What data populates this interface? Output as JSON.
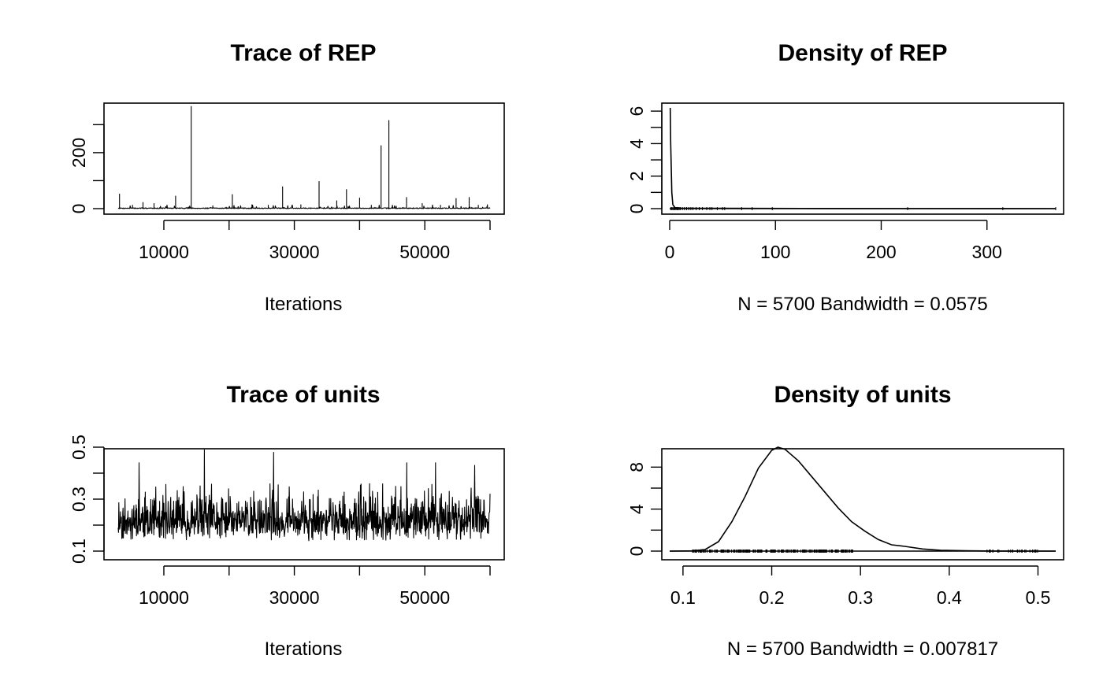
{
  "chart_data": [
    {
      "id": "trace-rep",
      "type": "line",
      "title": "Trace of REP",
      "xlabel": "Iterations",
      "ylabel": "",
      "xlim": [
        3000,
        60000
      ],
      "ylim": [
        0,
        360
      ],
      "xticks": [
        10000,
        20000,
        30000,
        40000,
        50000,
        60000
      ],
      "xtick_labels": [
        "10000",
        "",
        "30000",
        "",
        "50000",
        ""
      ],
      "yticks": [
        0,
        100,
        200,
        300
      ],
      "ytick_labels": [
        "0",
        "",
        "200",
        ""
      ],
      "baseline": 2,
      "spikes": [
        {
          "x": 3200,
          "y": 52
        },
        {
          "x": 5200,
          "y": 12
        },
        {
          "x": 6800,
          "y": 22
        },
        {
          "x": 8500,
          "y": 18
        },
        {
          "x": 11800,
          "y": 45
        },
        {
          "x": 14200,
          "y": 365
        },
        {
          "x": 17500,
          "y": 10
        },
        {
          "x": 20500,
          "y": 50
        },
        {
          "x": 23500,
          "y": 14
        },
        {
          "x": 26000,
          "y": 12
        },
        {
          "x": 28200,
          "y": 78
        },
        {
          "x": 31000,
          "y": 14
        },
        {
          "x": 33800,
          "y": 97
        },
        {
          "x": 36500,
          "y": 28
        },
        {
          "x": 38000,
          "y": 68
        },
        {
          "x": 40000,
          "y": 38
        },
        {
          "x": 41800,
          "y": 12
        },
        {
          "x": 43300,
          "y": 225
        },
        {
          "x": 44500,
          "y": 315
        },
        {
          "x": 47200,
          "y": 40
        },
        {
          "x": 49600,
          "y": 18
        },
        {
          "x": 52400,
          "y": 12
        },
        {
          "x": 54800,
          "y": 36
        },
        {
          "x": 56800,
          "y": 40
        },
        {
          "x": 58200,
          "y": 12
        },
        {
          "x": 59600,
          "y": 14
        }
      ]
    },
    {
      "id": "density-rep",
      "type": "line",
      "title": "Density of REP",
      "xlabel": "N = 5700   Bandwidth = 0.0575",
      "ylabel": "",
      "xlim": [
        0,
        365
      ],
      "ylim": [
        0,
        6.2
      ],
      "xticks": [
        0,
        100,
        200,
        300
      ],
      "xtick_labels": [
        "0",
        "100",
        "200",
        "300"
      ],
      "yticks": [
        0,
        1,
        2,
        3,
        4,
        5,
        6
      ],
      "ytick_labels": [
        "0",
        "",
        "2",
        "",
        "4",
        "",
        "6"
      ],
      "curve": {
        "x": [
          0.5,
          1,
          2,
          3,
          5,
          10,
          50,
          150,
          365
        ],
        "y": [
          6.2,
          4.0,
          1.0,
          0.25,
          0.06,
          0.03,
          0.02,
          0.01,
          0.0
        ]
      },
      "rug": [
        1,
        2,
        3,
        4,
        5,
        6,
        7,
        8,
        9,
        10,
        12,
        14,
        16,
        18,
        20,
        22,
        25,
        28,
        31,
        35,
        38,
        40,
        45,
        50,
        52,
        68,
        78,
        97,
        225,
        315,
        365
      ]
    },
    {
      "id": "trace-units",
      "type": "line",
      "title": "Trace of units",
      "xlabel": "Iterations",
      "ylabel": "",
      "xlim": [
        3000,
        60000
      ],
      "ylim": [
        0.1,
        0.5
      ],
      "xticks": [
        10000,
        20000,
        30000,
        40000,
        50000,
        60000
      ],
      "xtick_labels": [
        "10000",
        "",
        "30000",
        "",
        "50000",
        ""
      ],
      "yticks": [
        0.1,
        0.2,
        0.3,
        0.4,
        0.5
      ],
      "ytick_labels": [
        "0.1",
        "",
        "0.3",
        "",
        "0.5"
      ],
      "n_points": 1140,
      "center": 0.21,
      "peaks": [
        {
          "x": 6200,
          "y": 0.44
        },
        {
          "x": 16200,
          "y": 0.49
        },
        {
          "x": 26800,
          "y": 0.48
        },
        {
          "x": 47200,
          "y": 0.44
        },
        {
          "x": 51600,
          "y": 0.44
        },
        {
          "x": 57600,
          "y": 0.43
        }
      ]
    },
    {
      "id": "density-units",
      "type": "line",
      "title": "Density of units",
      "xlabel": "N = 5700   Bandwidth = 0.007817",
      "ylabel": "",
      "xlim": [
        0.085,
        0.52
      ],
      "ylim": [
        0,
        9.9
      ],
      "xticks": [
        0.1,
        0.2,
        0.3,
        0.4,
        0.5
      ],
      "xtick_labels": [
        "0.1",
        "0.2",
        "0.3",
        "0.4",
        "0.5"
      ],
      "yticks": [
        0,
        2,
        4,
        6,
        8
      ],
      "ytick_labels": [
        "0",
        "",
        "4",
        "",
        "8"
      ],
      "curve": {
        "x": [
          0.085,
          0.11,
          0.125,
          0.14,
          0.155,
          0.17,
          0.185,
          0.2,
          0.207,
          0.215,
          0.23,
          0.245,
          0.26,
          0.275,
          0.29,
          0.305,
          0.32,
          0.335,
          0.35,
          0.37,
          0.39,
          0.42,
          0.45,
          0.52
        ],
        "y": [
          0.0,
          0.02,
          0.15,
          0.9,
          2.8,
          5.2,
          7.9,
          9.6,
          9.9,
          9.7,
          8.6,
          7.1,
          5.6,
          4.1,
          2.8,
          1.9,
          1.1,
          0.6,
          0.45,
          0.2,
          0.08,
          0.03,
          0.01,
          0.0
        ]
      },
      "rug_range": [
        0.11,
        0.5
      ]
    }
  ]
}
